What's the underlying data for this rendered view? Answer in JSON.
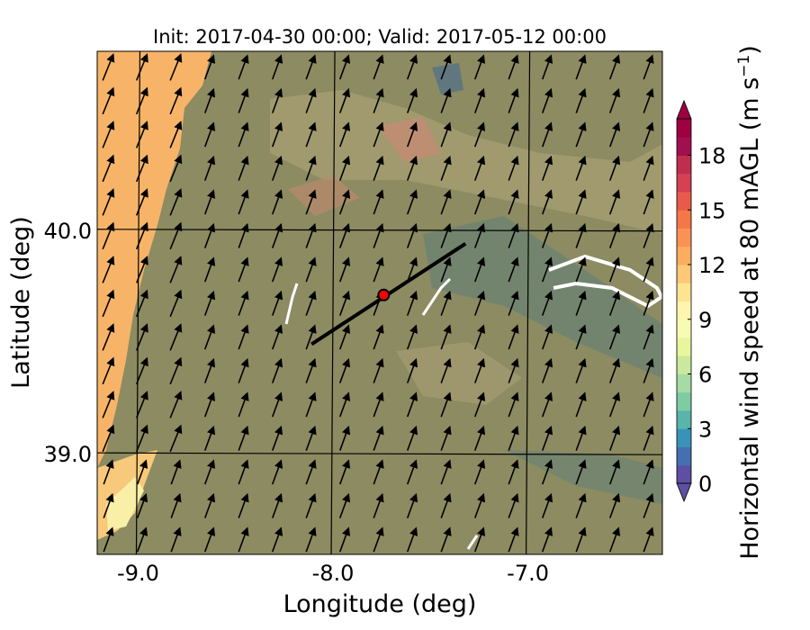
{
  "chart_data": {
    "type": "heatmap",
    "title": "Init: 2017-04-30 00:00; Valid: 2017-05-12 00:00",
    "xlabel": "Longitude (deg)",
    "ylabel": "Latitude (deg)",
    "xlim": [
      -9.21,
      -6.31
    ],
    "ylim": [
      38.55,
      40.8
    ],
    "xticks": [
      {
        "value": -9.0,
        "label": "-9.0"
      },
      {
        "value": -8.0,
        "label": "-8.0"
      },
      {
        "value": -7.0,
        "label": "-7.0"
      }
    ],
    "yticks": [
      {
        "value": 40.0,
        "label": "40.0"
      },
      {
        "value": 39.0,
        "label": "39.0"
      }
    ],
    "grid": true,
    "colorbar": {
      "label": "Horizontal wind speed at 80 mAGL (m s",
      "label_exponent": "−1",
      "label_close": ")",
      "min": 0,
      "max": 20,
      "step": 1,
      "extend": "both",
      "colormap": "Spectral_r",
      "ticks": [
        {
          "value": 0,
          "label": "0"
        },
        {
          "value": 3,
          "label": "3"
        },
        {
          "value": 6,
          "label": "6"
        },
        {
          "value": 9,
          "label": "9"
        },
        {
          "value": 12,
          "label": "12"
        },
        {
          "value": 15,
          "label": "15"
        },
        {
          "value": 18,
          "label": "18"
        }
      ],
      "colors": [
        "#5e4fa2",
        "#4470b1",
        "#3b92b8",
        "#59b4aa",
        "#7ecba4",
        "#a6dba4",
        "#cae99d",
        "#e8f69c",
        "#f7fcb3",
        "#fef5af",
        "#fee391",
        "#fdc877",
        "#fdad60",
        "#f99355",
        "#f57748",
        "#e85b4a",
        "#d34152",
        "#be2f4e",
        "#a0104f",
        "#9e0142"
      ]
    },
    "wind_field": {
      "direction_deg_from_north": 20,
      "dominant_speed_range_ms": [
        5,
        8
      ],
      "offshore_speed_range_ms": [
        12,
        15
      ]
    },
    "transect": {
      "start": {
        "lon": -8.11,
        "lat": 39.49
      },
      "end": {
        "lon": -7.32,
        "lat": 39.94
      }
    },
    "site_marker": {
      "lon": -7.74,
      "lat": 39.71,
      "color": "#ff0000"
    }
  }
}
